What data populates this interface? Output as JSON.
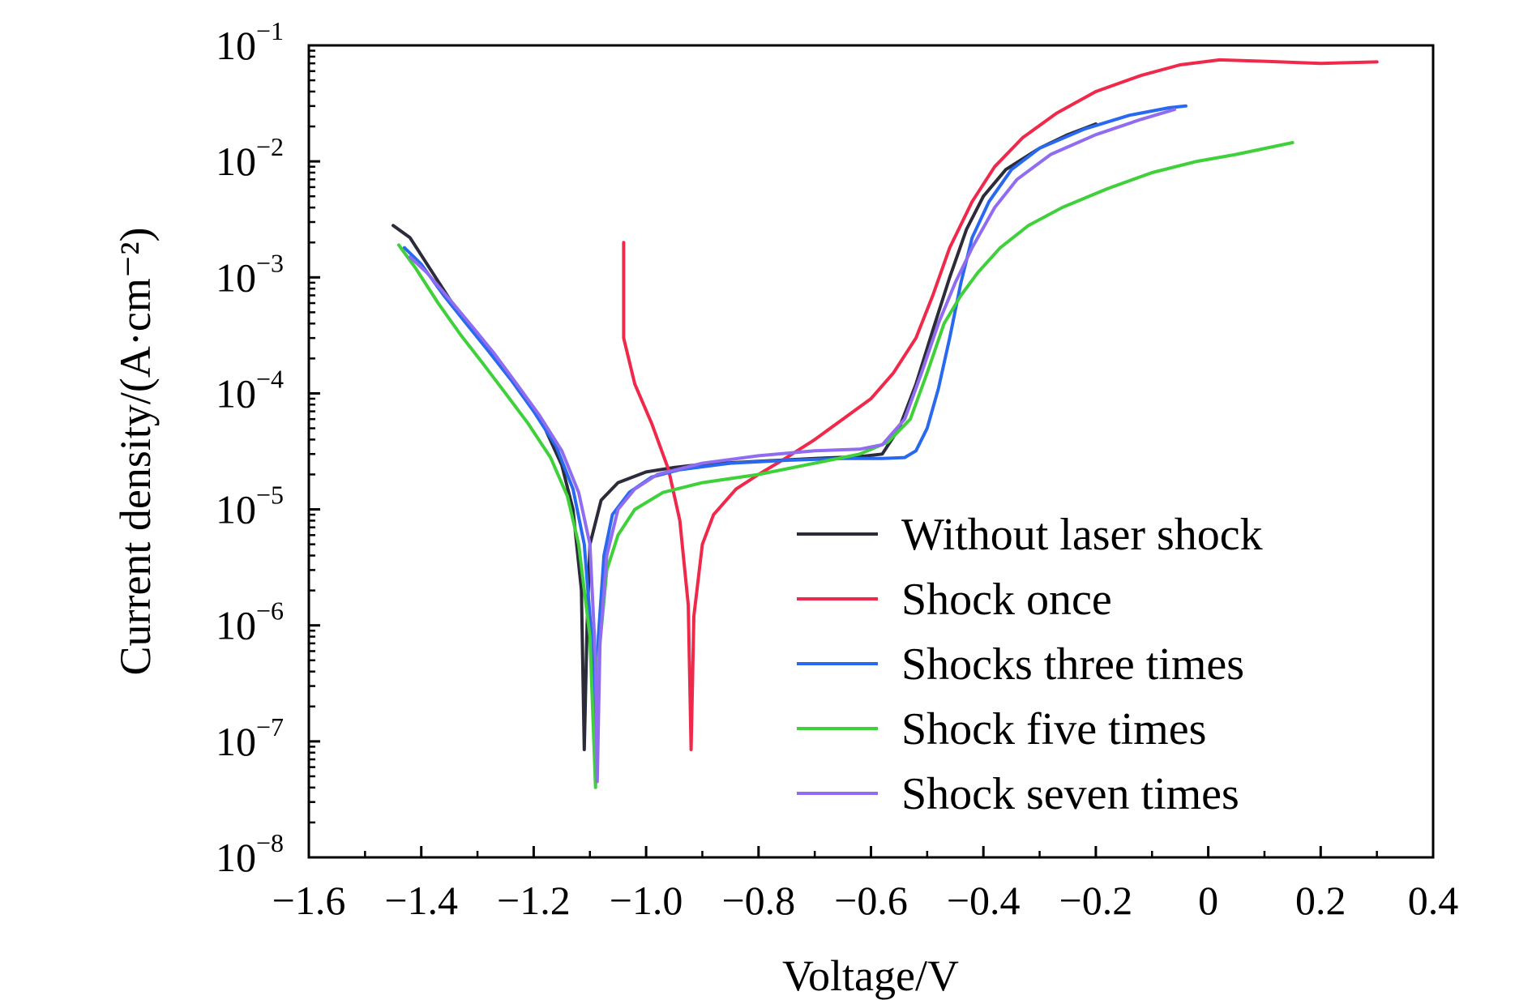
{
  "chart_data": {
    "type": "line",
    "xlabel": "Voltage/V",
    "ylabel": "Current density/(A·cm⁻²)",
    "xlim": [
      -1.6,
      0.4
    ],
    "ylim": [
      1e-08,
      0.1
    ],
    "yscale": "log",
    "x_ticks": [
      "−1.6",
      "−1.4",
      "−1.2",
      "−1.0",
      "−0.8",
      "−0.6",
      "−0.4",
      "−0.2",
      "0",
      "0.2",
      "0.4"
    ],
    "y_ticks": [
      {
        "base": "10",
        "exp": "−8"
      },
      {
        "base": "10",
        "exp": "−7"
      },
      {
        "base": "10",
        "exp": "−6"
      },
      {
        "base": "10",
        "exp": "−5"
      },
      {
        "base": "10",
        "exp": "−4"
      },
      {
        "base": "10",
        "exp": "−3"
      },
      {
        "base": "10",
        "exp": "−2"
      },
      {
        "base": "10",
        "exp": "−1"
      }
    ],
    "legend_position": "lower-right",
    "grid": false,
    "series": [
      {
        "name": "Without laser shock",
        "color": "#2b2b3a",
        "points": [
          [
            -1.45,
            0.0028
          ],
          [
            -1.42,
            0.0022
          ],
          [
            -1.38,
            0.0011
          ],
          [
            -1.34,
            0.00055
          ],
          [
            -1.3,
            0.00032
          ],
          [
            -1.26,
            0.00018
          ],
          [
            -1.22,
            0.0001
          ],
          [
            -1.18,
            5e-05
          ],
          [
            -1.15,
            2.4e-05
          ],
          [
            -1.13,
            1e-05
          ],
          [
            -1.115,
            2e-06
          ],
          [
            -1.11,
            8.5e-08
          ],
          [
            -1.105,
            1e-06
          ],
          [
            -1.1,
            5e-06
          ],
          [
            -1.08,
            1.2e-05
          ],
          [
            -1.05,
            1.7e-05
          ],
          [
            -1.0,
            2.1e-05
          ],
          [
            -0.95,
            2.3e-05
          ],
          [
            -0.9,
            2.45e-05
          ],
          [
            -0.8,
            2.6e-05
          ],
          [
            -0.7,
            2.75e-05
          ],
          [
            -0.62,
            2.85e-05
          ],
          [
            -0.58,
            3e-05
          ],
          [
            -0.55,
            5e-05
          ],
          [
            -0.52,
            0.00012
          ],
          [
            -0.49,
            0.00035
          ],
          [
            -0.46,
            0.001
          ],
          [
            -0.43,
            0.0026
          ],
          [
            -0.4,
            0.005
          ],
          [
            -0.36,
            0.0085
          ],
          [
            -0.3,
            0.013
          ],
          [
            -0.25,
            0.017
          ],
          [
            -0.2,
            0.021
          ]
        ]
      },
      {
        "name": "Shock once",
        "color": "#f0284a",
        "points": [
          [
            -1.04,
            0.002
          ],
          [
            -1.04,
            0.0003
          ],
          [
            -1.02,
            0.00012
          ],
          [
            -0.99,
            5.5e-05
          ],
          [
            -0.96,
            2.2e-05
          ],
          [
            -0.94,
            8e-06
          ],
          [
            -0.925,
            1.5e-06
          ],
          [
            -0.92,
            8.5e-08
          ],
          [
            -0.915,
            1.2e-06
          ],
          [
            -0.9,
            5e-06
          ],
          [
            -0.88,
            9e-06
          ],
          [
            -0.84,
            1.5e-05
          ],
          [
            -0.8,
            2e-05
          ],
          [
            -0.75,
            2.8e-05
          ],
          [
            -0.7,
            4e-05
          ],
          [
            -0.65,
            6e-05
          ],
          [
            -0.6,
            9e-05
          ],
          [
            -0.56,
            0.00015
          ],
          [
            -0.52,
            0.0003
          ],
          [
            -0.49,
            0.0007
          ],
          [
            -0.46,
            0.0018
          ],
          [
            -0.42,
            0.0045
          ],
          [
            -0.38,
            0.009
          ],
          [
            -0.33,
            0.016
          ],
          [
            -0.27,
            0.026
          ],
          [
            -0.2,
            0.04
          ],
          [
            -0.12,
            0.055
          ],
          [
            -0.05,
            0.068
          ],
          [
            0.02,
            0.075
          ],
          [
            0.1,
            0.073
          ],
          [
            0.2,
            0.07
          ],
          [
            0.3,
            0.072
          ]
        ]
      },
      {
        "name": "Shocks three times",
        "color": "#2869f0",
        "points": [
          [
            -1.43,
            0.0018
          ],
          [
            -1.4,
            0.0013
          ],
          [
            -1.36,
            0.0007
          ],
          [
            -1.32,
            0.0004
          ],
          [
            -1.28,
            0.00023
          ],
          [
            -1.24,
            0.00013
          ],
          [
            -1.2,
            7e-05
          ],
          [
            -1.16,
            3.5e-05
          ],
          [
            -1.13,
            1.5e-05
          ],
          [
            -1.11,
            5e-06
          ],
          [
            -1.095,
            6e-07
          ],
          [
            -1.09,
            5e-08
          ],
          [
            -1.085,
            8e-07
          ],
          [
            -1.075,
            4e-06
          ],
          [
            -1.06,
            9e-06
          ],
          [
            -1.03,
            1.4e-05
          ],
          [
            -0.99,
            1.9e-05
          ],
          [
            -0.94,
            2.2e-05
          ],
          [
            -0.85,
            2.5e-05
          ],
          [
            -0.75,
            2.65e-05
          ],
          [
            -0.65,
            2.75e-05
          ],
          [
            -0.58,
            2.75e-05
          ],
          [
            -0.54,
            2.8e-05
          ],
          [
            -0.52,
            3.2e-05
          ],
          [
            -0.5,
            5e-05
          ],
          [
            -0.48,
            0.00011
          ],
          [
            -0.46,
            0.0003
          ],
          [
            -0.44,
            0.0009
          ],
          [
            -0.42,
            0.0022
          ],
          [
            -0.39,
            0.0045
          ],
          [
            -0.35,
            0.0085
          ],
          [
            -0.3,
            0.013
          ],
          [
            -0.22,
            0.019
          ],
          [
            -0.14,
            0.025
          ],
          [
            -0.07,
            0.029
          ],
          [
            -0.04,
            0.03
          ]
        ]
      },
      {
        "name": "Shock five times",
        "color": "#3fd03a",
        "points": [
          [
            -1.44,
            0.0019
          ],
          [
            -1.41,
            0.0012
          ],
          [
            -1.37,
            0.0006
          ],
          [
            -1.33,
            0.00032
          ],
          [
            -1.29,
            0.00018
          ],
          [
            -1.25,
            0.0001
          ],
          [
            -1.21,
            5.5e-05
          ],
          [
            -1.17,
            2.8e-05
          ],
          [
            -1.14,
            1.3e-05
          ],
          [
            -1.12,
            5e-06
          ],
          [
            -1.1,
            8e-07
          ],
          [
            -1.09,
            4e-08
          ],
          [
            -1.085,
            5e-07
          ],
          [
            -1.07,
            3e-06
          ],
          [
            -1.05,
            6e-06
          ],
          [
            -1.02,
            1e-05
          ],
          [
            -0.97,
            1.4e-05
          ],
          [
            -0.9,
            1.7e-05
          ],
          [
            -0.8,
            2e-05
          ],
          [
            -0.7,
            2.5e-05
          ],
          [
            -0.62,
            3e-05
          ],
          [
            -0.57,
            3.8e-05
          ],
          [
            -0.53,
            6e-05
          ],
          [
            -0.5,
            0.00015
          ],
          [
            -0.47,
            0.0004
          ],
          [
            -0.44,
            0.0007
          ],
          [
            -0.41,
            0.0011
          ],
          [
            -0.37,
            0.0018
          ],
          [
            -0.32,
            0.0028
          ],
          [
            -0.26,
            0.004
          ],
          [
            -0.18,
            0.0058
          ],
          [
            -0.1,
            0.008
          ],
          [
            -0.02,
            0.01
          ],
          [
            0.05,
            0.0115
          ],
          [
            0.15,
            0.0145
          ]
        ]
      },
      {
        "name": "Shock seven times",
        "color": "#8f6cf0",
        "points": [
          [
            -1.42,
            0.0015
          ],
          [
            -1.39,
            0.0011
          ],
          [
            -1.35,
            0.00065
          ],
          [
            -1.31,
            0.00038
          ],
          [
            -1.27,
            0.00022
          ],
          [
            -1.23,
            0.00012
          ],
          [
            -1.19,
            6.5e-05
          ],
          [
            -1.15,
            3.2e-05
          ],
          [
            -1.12,
            1.4e-05
          ],
          [
            -1.1,
            5e-06
          ],
          [
            -1.09,
            5e-07
          ],
          [
            -1.087,
            4.5e-08
          ],
          [
            -1.082,
            7e-07
          ],
          [
            -1.07,
            4e-06
          ],
          [
            -1.05,
            1e-05
          ],
          [
            -1.02,
            1.5e-05
          ],
          [
            -0.98,
            2e-05
          ],
          [
            -0.9,
            2.5e-05
          ],
          [
            -0.8,
            2.9e-05
          ],
          [
            -0.7,
            3.2e-05
          ],
          [
            -0.62,
            3.3e-05
          ],
          [
            -0.58,
            3.6e-05
          ],
          [
            -0.54,
            6e-05
          ],
          [
            -0.51,
            0.00015
          ],
          [
            -0.48,
            0.0004
          ],
          [
            -0.45,
            0.0009
          ],
          [
            -0.42,
            0.0018
          ],
          [
            -0.38,
            0.004
          ],
          [
            -0.34,
            0.007
          ],
          [
            -0.28,
            0.0115
          ],
          [
            -0.2,
            0.017
          ],
          [
            -0.12,
            0.023
          ],
          [
            -0.06,
            0.028
          ]
        ]
      }
    ]
  }
}
